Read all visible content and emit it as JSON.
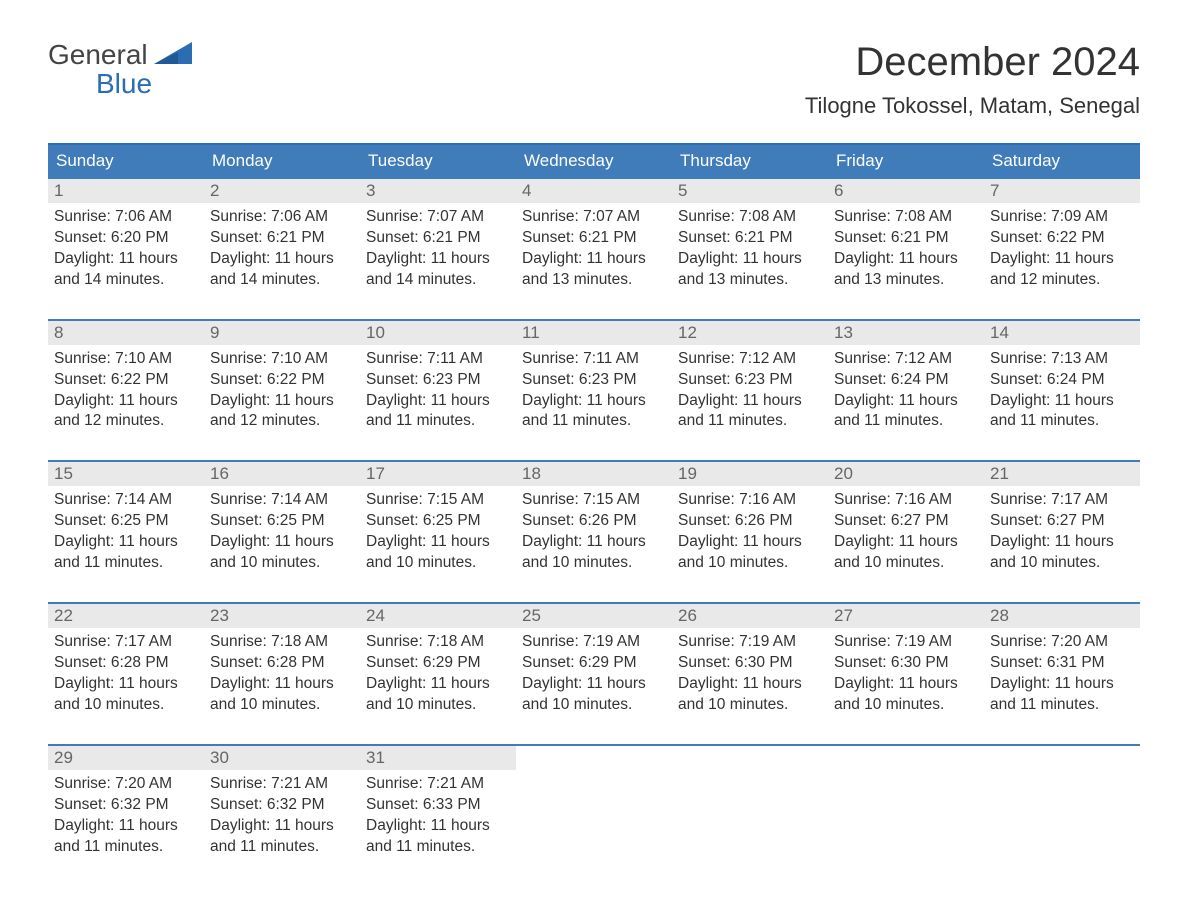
{
  "logo": {
    "word1": "General",
    "word2": "Blue",
    "tri_color": "#2a6db3",
    "word1_color": "#444444",
    "word2_color": "#2a6db3"
  },
  "title": "December 2024",
  "location": "Tilogne Tokossel, Matam, Senegal",
  "weekday_header_bg": "#3f7cb9",
  "weekday_header_fg": "#ffffff",
  "week_border_color": "#3f7cb9",
  "daynum_bg": "#e9e9e9",
  "daynum_fg": "#666666",
  "weekdays": [
    "Sunday",
    "Monday",
    "Tuesday",
    "Wednesday",
    "Thursday",
    "Friday",
    "Saturday"
  ],
  "weeks": [
    [
      {
        "n": "1",
        "sr": "Sunrise: 7:06 AM",
        "ss": "Sunset: 6:20 PM",
        "d1": "Daylight: 11 hours",
        "d2": "and 14 minutes."
      },
      {
        "n": "2",
        "sr": "Sunrise: 7:06 AM",
        "ss": "Sunset: 6:21 PM",
        "d1": "Daylight: 11 hours",
        "d2": "and 14 minutes."
      },
      {
        "n": "3",
        "sr": "Sunrise: 7:07 AM",
        "ss": "Sunset: 6:21 PM",
        "d1": "Daylight: 11 hours",
        "d2": "and 14 minutes."
      },
      {
        "n": "4",
        "sr": "Sunrise: 7:07 AM",
        "ss": "Sunset: 6:21 PM",
        "d1": "Daylight: 11 hours",
        "d2": "and 13 minutes."
      },
      {
        "n": "5",
        "sr": "Sunrise: 7:08 AM",
        "ss": "Sunset: 6:21 PM",
        "d1": "Daylight: 11 hours",
        "d2": "and 13 minutes."
      },
      {
        "n": "6",
        "sr": "Sunrise: 7:08 AM",
        "ss": "Sunset: 6:21 PM",
        "d1": "Daylight: 11 hours",
        "d2": "and 13 minutes."
      },
      {
        "n": "7",
        "sr": "Sunrise: 7:09 AM",
        "ss": "Sunset: 6:22 PM",
        "d1": "Daylight: 11 hours",
        "d2": "and 12 minutes."
      }
    ],
    [
      {
        "n": "8",
        "sr": "Sunrise: 7:10 AM",
        "ss": "Sunset: 6:22 PM",
        "d1": "Daylight: 11 hours",
        "d2": "and 12 minutes."
      },
      {
        "n": "9",
        "sr": "Sunrise: 7:10 AM",
        "ss": "Sunset: 6:22 PM",
        "d1": "Daylight: 11 hours",
        "d2": "and 12 minutes."
      },
      {
        "n": "10",
        "sr": "Sunrise: 7:11 AM",
        "ss": "Sunset: 6:23 PM",
        "d1": "Daylight: 11 hours",
        "d2": "and 11 minutes."
      },
      {
        "n": "11",
        "sr": "Sunrise: 7:11 AM",
        "ss": "Sunset: 6:23 PM",
        "d1": "Daylight: 11 hours",
        "d2": "and 11 minutes."
      },
      {
        "n": "12",
        "sr": "Sunrise: 7:12 AM",
        "ss": "Sunset: 6:23 PM",
        "d1": "Daylight: 11 hours",
        "d2": "and 11 minutes."
      },
      {
        "n": "13",
        "sr": "Sunrise: 7:12 AM",
        "ss": "Sunset: 6:24 PM",
        "d1": "Daylight: 11 hours",
        "d2": "and 11 minutes."
      },
      {
        "n": "14",
        "sr": "Sunrise: 7:13 AM",
        "ss": "Sunset: 6:24 PM",
        "d1": "Daylight: 11 hours",
        "d2": "and 11 minutes."
      }
    ],
    [
      {
        "n": "15",
        "sr": "Sunrise: 7:14 AM",
        "ss": "Sunset: 6:25 PM",
        "d1": "Daylight: 11 hours",
        "d2": "and 11 minutes."
      },
      {
        "n": "16",
        "sr": "Sunrise: 7:14 AM",
        "ss": "Sunset: 6:25 PM",
        "d1": "Daylight: 11 hours",
        "d2": "and 10 minutes."
      },
      {
        "n": "17",
        "sr": "Sunrise: 7:15 AM",
        "ss": "Sunset: 6:25 PM",
        "d1": "Daylight: 11 hours",
        "d2": "and 10 minutes."
      },
      {
        "n": "18",
        "sr": "Sunrise: 7:15 AM",
        "ss": "Sunset: 6:26 PM",
        "d1": "Daylight: 11 hours",
        "d2": "and 10 minutes."
      },
      {
        "n": "19",
        "sr": "Sunrise: 7:16 AM",
        "ss": "Sunset: 6:26 PM",
        "d1": "Daylight: 11 hours",
        "d2": "and 10 minutes."
      },
      {
        "n": "20",
        "sr": "Sunrise: 7:16 AM",
        "ss": "Sunset: 6:27 PM",
        "d1": "Daylight: 11 hours",
        "d2": "and 10 minutes."
      },
      {
        "n": "21",
        "sr": "Sunrise: 7:17 AM",
        "ss": "Sunset: 6:27 PM",
        "d1": "Daylight: 11 hours",
        "d2": "and 10 minutes."
      }
    ],
    [
      {
        "n": "22",
        "sr": "Sunrise: 7:17 AM",
        "ss": "Sunset: 6:28 PM",
        "d1": "Daylight: 11 hours",
        "d2": "and 10 minutes."
      },
      {
        "n": "23",
        "sr": "Sunrise: 7:18 AM",
        "ss": "Sunset: 6:28 PM",
        "d1": "Daylight: 11 hours",
        "d2": "and 10 minutes."
      },
      {
        "n": "24",
        "sr": "Sunrise: 7:18 AM",
        "ss": "Sunset: 6:29 PM",
        "d1": "Daylight: 11 hours",
        "d2": "and 10 minutes."
      },
      {
        "n": "25",
        "sr": "Sunrise: 7:19 AM",
        "ss": "Sunset: 6:29 PM",
        "d1": "Daylight: 11 hours",
        "d2": "and 10 minutes."
      },
      {
        "n": "26",
        "sr": "Sunrise: 7:19 AM",
        "ss": "Sunset: 6:30 PM",
        "d1": "Daylight: 11 hours",
        "d2": "and 10 minutes."
      },
      {
        "n": "27",
        "sr": "Sunrise: 7:19 AM",
        "ss": "Sunset: 6:30 PM",
        "d1": "Daylight: 11 hours",
        "d2": "and 10 minutes."
      },
      {
        "n": "28",
        "sr": "Sunrise: 7:20 AM",
        "ss": "Sunset: 6:31 PM",
        "d1": "Daylight: 11 hours",
        "d2": "and 11 minutes."
      }
    ],
    [
      {
        "n": "29",
        "sr": "Sunrise: 7:20 AM",
        "ss": "Sunset: 6:32 PM",
        "d1": "Daylight: 11 hours",
        "d2": "and 11 minutes."
      },
      {
        "n": "30",
        "sr": "Sunrise: 7:21 AM",
        "ss": "Sunset: 6:32 PM",
        "d1": "Daylight: 11 hours",
        "d2": "and 11 minutes."
      },
      {
        "n": "31",
        "sr": "Sunrise: 7:21 AM",
        "ss": "Sunset: 6:33 PM",
        "d1": "Daylight: 11 hours",
        "d2": "and 11 minutes."
      },
      {
        "empty": true
      },
      {
        "empty": true
      },
      {
        "empty": true
      },
      {
        "empty": true
      }
    ]
  ]
}
